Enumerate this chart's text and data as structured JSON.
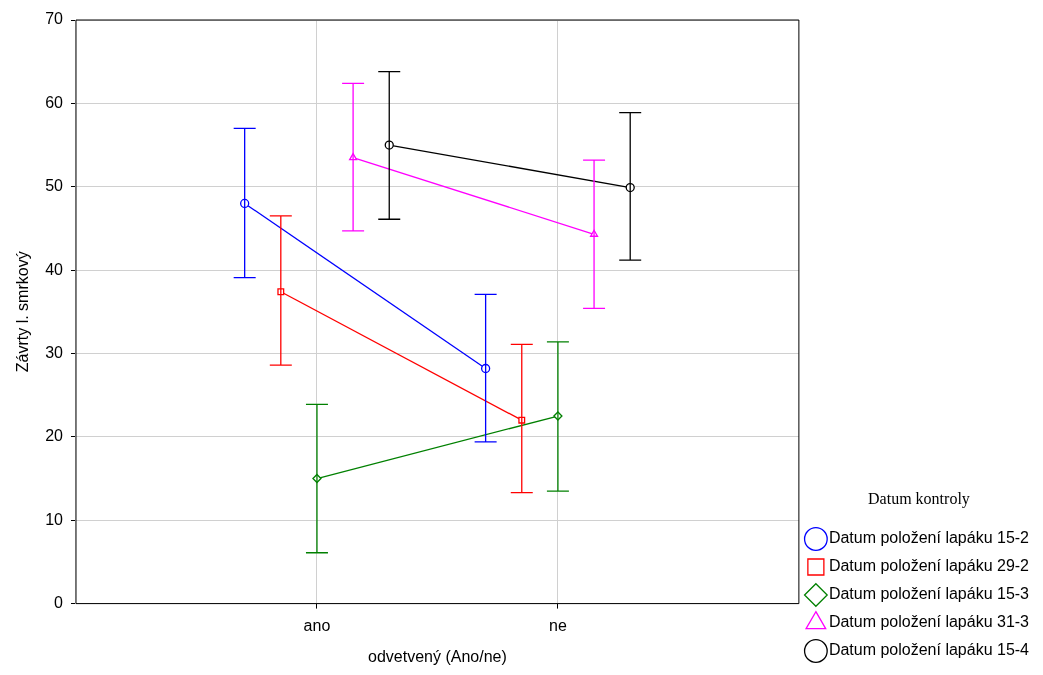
{
  "chart_data": {
    "type": "line",
    "xlabel": "odvetvený (Ano/ne)",
    "ylabel": "Závrty l. smrkový",
    "legend_title": "Datum kontroly",
    "categories": [
      "ano",
      "ne"
    ],
    "ylim": [
      0,
      70
    ],
    "yticks": [
      0,
      10,
      20,
      30,
      40,
      50,
      60,
      70
    ],
    "grid": true,
    "legend": "bottom right",
    "series": [
      {
        "name": "Datum položení lapáku 15-2",
        "color": "#0000ff",
        "marker": "circle",
        "values": [
          48,
          28.2
        ],
        "errors": [
          [
            39.1,
            57
          ],
          [
            19.4,
            37.1
          ]
        ]
      },
      {
        "name": "Datum položení lapáku 29-2",
        "color": "#ff0000",
        "marker": "square",
        "values": [
          37.4,
          22
        ],
        "errors": [
          [
            28.6,
            46.5
          ],
          [
            13.3,
            31.1
          ]
        ]
      },
      {
        "name": "Datum položení lapáku 15-3",
        "color": "#008000",
        "marker": "diamond",
        "values": [
          15,
          22.5
        ],
        "errors": [
          [
            6.1,
            23.9
          ],
          [
            13.5,
            31.4
          ]
        ]
      },
      {
        "name": "Datum položení lapáku 31-3",
        "color": "#ff00ff",
        "marker": "triangle",
        "values": [
          53.5,
          44.3
        ],
        "errors": [
          [
            44.7,
            62.4
          ],
          [
            35.4,
            53.2
          ]
        ]
      },
      {
        "name": "Datum položení lapáku 15-4",
        "color": "#000000",
        "marker": "circle",
        "values": [
          55,
          49.9
        ],
        "errors": [
          [
            46.1,
            63.8
          ],
          [
            41.2,
            58.9
          ]
        ]
      }
    ]
  }
}
